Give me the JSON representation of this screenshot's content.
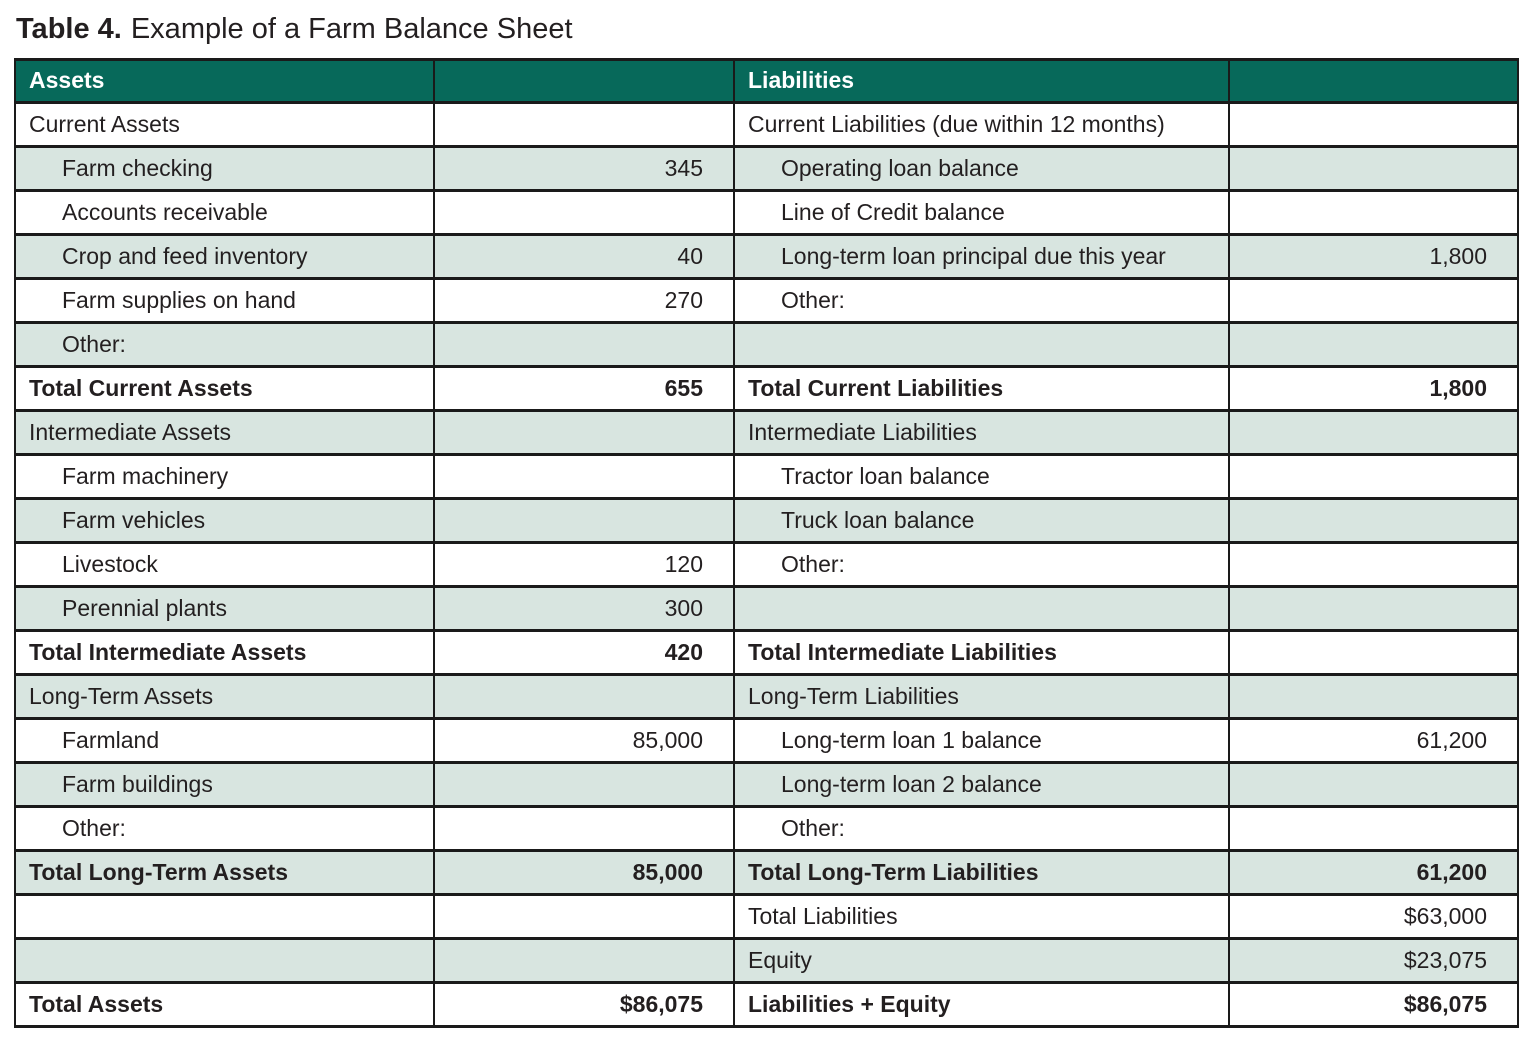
{
  "title": {
    "label": "Table 4.",
    "text": "Example of a Farm Balance Sheet"
  },
  "colors": {
    "header_bg": "#07695a",
    "header_text": "#ffffff",
    "row_alt_bg": "#d8e5e0",
    "border": "#1a1a1a",
    "text": "#231f20"
  },
  "table": {
    "header": [
      "Assets",
      "",
      "Liabilities",
      ""
    ],
    "rows": [
      {
        "cells": [
          {
            "t": "Current Assets",
            "s": "sec"
          },
          {
            "t": "",
            "s": "val"
          },
          {
            "t": "Current Liabilities (due within 12 months)",
            "s": "sec"
          },
          {
            "t": "",
            "s": "val"
          }
        ]
      },
      {
        "cells": [
          {
            "t": "Farm checking",
            "s": "item"
          },
          {
            "t": "345",
            "s": "val"
          },
          {
            "t": "Operating loan balance",
            "s": "item"
          },
          {
            "t": "",
            "s": "val"
          }
        ]
      },
      {
        "cells": [
          {
            "t": "Accounts receivable",
            "s": "item"
          },
          {
            "t": "",
            "s": "val"
          },
          {
            "t": "Line of Credit balance",
            "s": "item"
          },
          {
            "t": "",
            "s": "val"
          }
        ]
      },
      {
        "cells": [
          {
            "t": "Crop and feed inventory",
            "s": "item"
          },
          {
            "t": "40",
            "s": "val"
          },
          {
            "t": "Long-term loan principal due this year",
            "s": "item"
          },
          {
            "t": "1,800",
            "s": "val"
          }
        ]
      },
      {
        "cells": [
          {
            "t": "Farm supplies on hand",
            "s": "item"
          },
          {
            "t": "270",
            "s": "val"
          },
          {
            "t": "Other:",
            "s": "item"
          },
          {
            "t": "",
            "s": "val"
          }
        ]
      },
      {
        "cells": [
          {
            "t": "Other:",
            "s": "item"
          },
          {
            "t": "",
            "s": "val"
          },
          {
            "t": "",
            "s": "item"
          },
          {
            "t": "",
            "s": "val"
          }
        ]
      },
      {
        "cells": [
          {
            "t": "Total Current Assets",
            "s": "tot"
          },
          {
            "t": "655",
            "s": "valb"
          },
          {
            "t": "Total Current Liabilities",
            "s": "tot"
          },
          {
            "t": "1,800",
            "s": "valb"
          }
        ]
      },
      {
        "cells": [
          {
            "t": "Intermediate Assets",
            "s": "sec"
          },
          {
            "t": "",
            "s": "val"
          },
          {
            "t": "Intermediate Liabilities",
            "s": "sec"
          },
          {
            "t": "",
            "s": "val"
          }
        ]
      },
      {
        "cells": [
          {
            "t": "Farm machinery",
            "s": "item"
          },
          {
            "t": "",
            "s": "val"
          },
          {
            "t": "Tractor loan balance",
            "s": "item"
          },
          {
            "t": "",
            "s": "val"
          }
        ]
      },
      {
        "cells": [
          {
            "t": "Farm vehicles",
            "s": "item"
          },
          {
            "t": "",
            "s": "val"
          },
          {
            "t": "Truck loan balance",
            "s": "item"
          },
          {
            "t": "",
            "s": "val"
          }
        ]
      },
      {
        "cells": [
          {
            "t": "Livestock",
            "s": "item"
          },
          {
            "t": "120",
            "s": "val"
          },
          {
            "t": "Other:",
            "s": "item"
          },
          {
            "t": "",
            "s": "val"
          }
        ]
      },
      {
        "cells": [
          {
            "t": "Perennial plants",
            "s": "item"
          },
          {
            "t": "300",
            "s": "val"
          },
          {
            "t": "",
            "s": "item"
          },
          {
            "t": "",
            "s": "val"
          }
        ]
      },
      {
        "cells": [
          {
            "t": "Total Intermediate Assets",
            "s": "tot"
          },
          {
            "t": "420",
            "s": "valb"
          },
          {
            "t": "Total Intermediate Liabilities",
            "s": "tot"
          },
          {
            "t": "",
            "s": "valb"
          }
        ]
      },
      {
        "cells": [
          {
            "t": "Long-Term Assets",
            "s": "sec"
          },
          {
            "t": "",
            "s": "val"
          },
          {
            "t": "Long-Term Liabilities",
            "s": "sec"
          },
          {
            "t": "",
            "s": "val"
          }
        ]
      },
      {
        "cells": [
          {
            "t": "Farmland",
            "s": "item"
          },
          {
            "t": "85,000",
            "s": "val"
          },
          {
            "t": "Long-term loan 1 balance",
            "s": "item"
          },
          {
            "t": "61,200",
            "s": "val"
          }
        ]
      },
      {
        "cells": [
          {
            "t": "Farm buildings",
            "s": "item"
          },
          {
            "t": "",
            "s": "val"
          },
          {
            "t": "Long-term loan 2 balance",
            "s": "item"
          },
          {
            "t": "",
            "s": "val"
          }
        ]
      },
      {
        "cells": [
          {
            "t": "Other:",
            "s": "item"
          },
          {
            "t": "",
            "s": "val"
          },
          {
            "t": "Other:",
            "s": "item"
          },
          {
            "t": "",
            "s": "val"
          }
        ]
      },
      {
        "cells": [
          {
            "t": "Total Long-Term Assets",
            "s": "tot"
          },
          {
            "t": "85,000",
            "s": "valb"
          },
          {
            "t": "Total Long-Term Liabilities",
            "s": "tot"
          },
          {
            "t": "61,200",
            "s": "valb"
          }
        ]
      },
      {
        "cells": [
          {
            "t": "",
            "s": "sec"
          },
          {
            "t": "",
            "s": "val"
          },
          {
            "t": "Total Liabilities",
            "s": "sec"
          },
          {
            "t": "$63,000",
            "s": "val"
          }
        ]
      },
      {
        "cells": [
          {
            "t": "",
            "s": "sec"
          },
          {
            "t": "",
            "s": "val"
          },
          {
            "t": "Equity",
            "s": "sec"
          },
          {
            "t": "$23,075",
            "s": "val"
          }
        ]
      },
      {
        "cells": [
          {
            "t": "Total Assets",
            "s": "tot"
          },
          {
            "t": "$86,075",
            "s": "valb"
          },
          {
            "t": "Liabilities + Equity",
            "s": "tot"
          },
          {
            "t": "$86,075",
            "s": "valb"
          }
        ]
      }
    ]
  }
}
